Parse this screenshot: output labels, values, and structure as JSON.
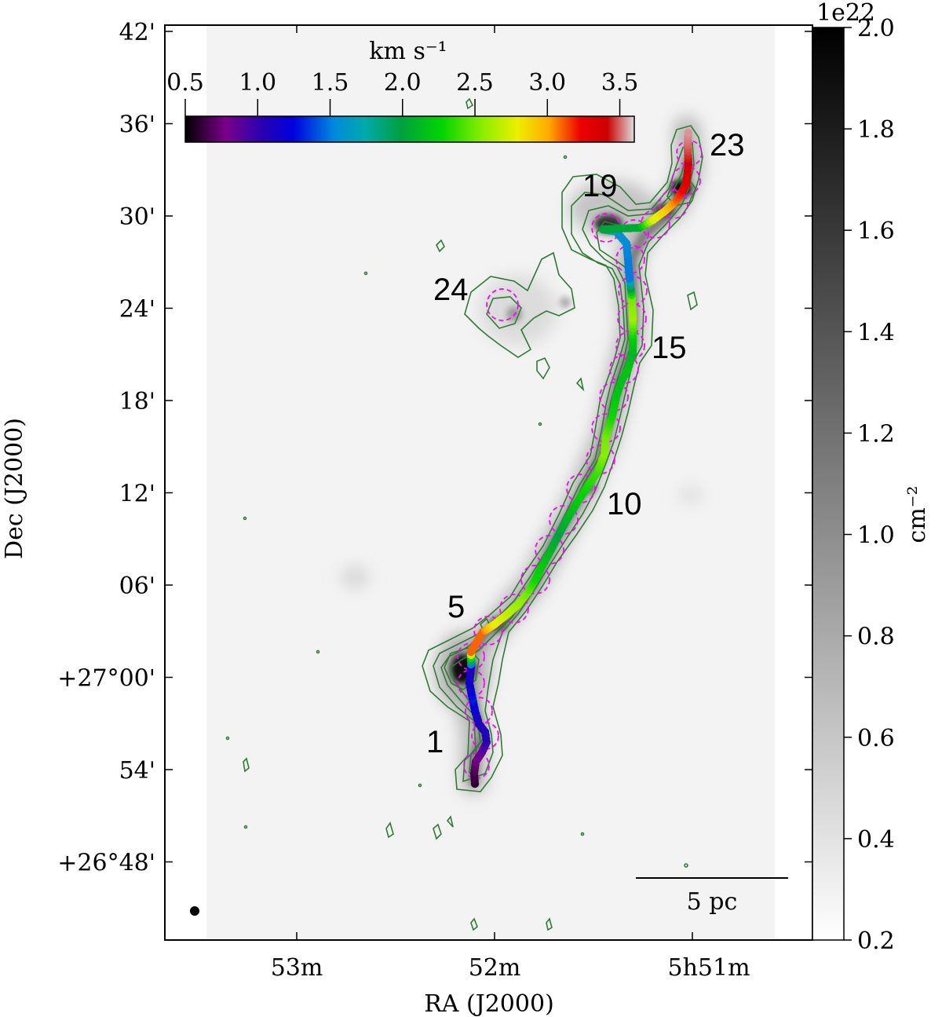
{
  "chart_data": {
    "type": "scatter",
    "title": "",
    "xlabel": "RA (J2000)",
    "ylabel": "Dec (J2000)",
    "x_ticks": [
      "53m",
      "52m",
      "5h51m"
    ],
    "y_ticks": [
      "42'",
      "36'",
      "30'",
      "24'",
      "18'",
      "12'",
      "06'",
      "+27°00'",
      "54'",
      "+26°48'"
    ],
    "background_map": {
      "quantity": "column density",
      "colorbar_label": "cm⁻²",
      "scale_factor": "1e22",
      "range": [
        0.2,
        2.0
      ],
      "ticks": [
        "0.2",
        "0.4",
        "0.6",
        "0.8",
        "1.0",
        "1.2",
        "1.4",
        "1.6",
        "1.8",
        "2.0"
      ],
      "colormap": "gray_r"
    },
    "velocity_colorbar": {
      "label": "km s⁻¹",
      "range": [
        0.5,
        3.6
      ],
      "ticks": [
        "0.5",
        "1.0",
        "1.5",
        "2.0",
        "2.5",
        "3.0",
        "3.5"
      ],
      "colormap": "nipy_spectral"
    },
    "contour_color": "#2e7d32",
    "circle_color": "#ff00ff",
    "scale_bar": "5 pc",
    "segment_labels": [
      "1",
      "5",
      "10",
      "15",
      "19",
      "23",
      "24"
    ],
    "filament_velocity_km_s": [
      0.6,
      0.65,
      0.75,
      0.85,
      1.0,
      1.1,
      1.05,
      1.2,
      1.3,
      1.15,
      1.1,
      3.1,
      2.8,
      2.7,
      2.6,
      2.5,
      2.3,
      2.2,
      2.1,
      2.0,
      2.1,
      2.2,
      2.3,
      2.4,
      2.55,
      2.5,
      2.3,
      2.2,
      2.15,
      2.2,
      2.1,
      2.25,
      2.6,
      2.5,
      1.5,
      1.55,
      1.6,
      2.0,
      2.05,
      2.75,
      2.9,
      3.1,
      3.3,
      3.4,
      3.5,
      3.55
    ]
  }
}
